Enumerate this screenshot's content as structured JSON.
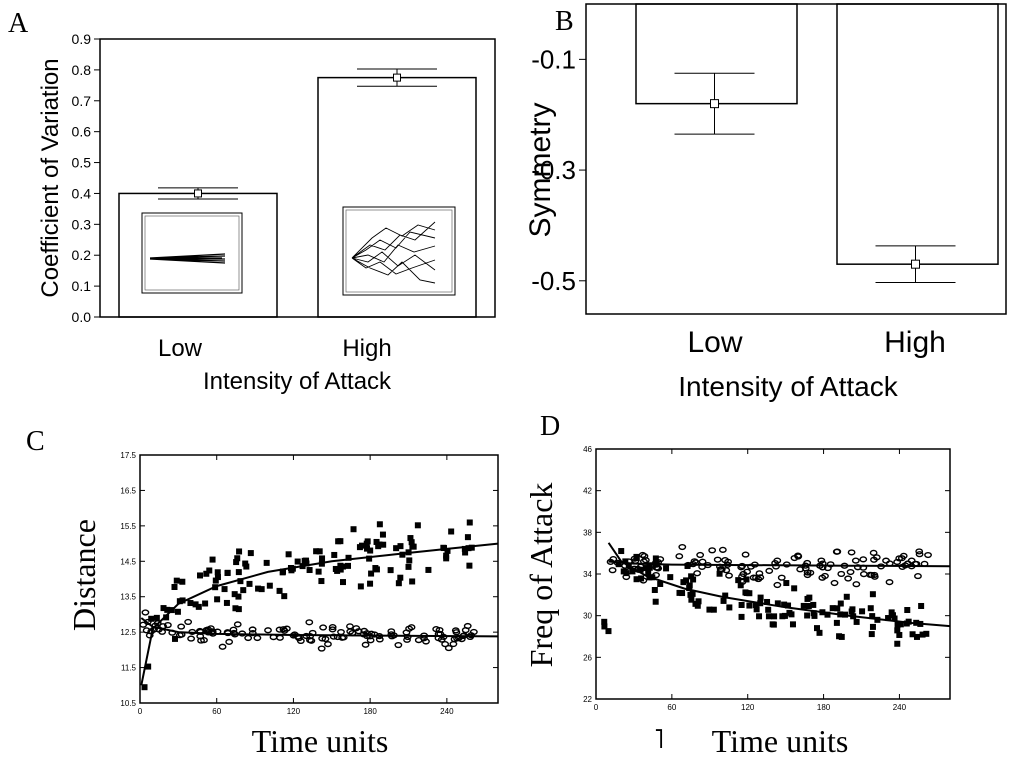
{
  "chart_data": [
    {
      "panel": "A",
      "type": "bar",
      "xlabel": "Intensity of Attack",
      "ylabel": "Coefficient of Variation",
      "categories": [
        "Low",
        "High"
      ],
      "values": [
        0.4,
        0.775
      ],
      "error": [
        0.018,
        0.028
      ],
      "ylim": [
        0,
        0.9
      ],
      "yticks": [
        "0.0",
        "0.1",
        "0.2",
        "0.3",
        "0.4",
        "0.5",
        "0.6",
        "0.7",
        "0.8",
        "0.9"
      ],
      "insets": "trajectory plots inside each bar (narrow bundle for Low, widely spread bundle for High)"
    },
    {
      "panel": "B",
      "type": "bar",
      "xlabel": "Intensity of Attack",
      "ylabel": "Symmetry",
      "categories": [
        "Low",
        "High"
      ],
      "values": [
        -0.18,
        -0.47
      ],
      "error": [
        0.055,
        0.033
      ],
      "ylim": [
        -0.56,
        0.0
      ],
      "yticks": [
        "-0.1",
        "-0.3",
        "-0.5"
      ]
    },
    {
      "panel": "C",
      "type": "scatter",
      "xlabel": "Time units",
      "ylabel": "Distance",
      "xlim": [
        0,
        280
      ],
      "ylim": [
        10.5,
        17.5
      ],
      "xticks": [
        "0",
        "60",
        "120",
        "180",
        "240"
      ],
      "yticks": [
        "10.5",
        "11.5",
        "12.5",
        "13.5",
        "14.5",
        "15.5",
        "16.5",
        "17.5"
      ],
      "series": [
        {
          "marker": "filled-square",
          "fit": {
            "x": [
              1,
              10,
              30,
              60,
              100,
              150,
              200,
              240,
              280
            ],
            "y": [
              11.0,
              12.6,
              13.3,
              13.8,
              14.2,
              14.5,
              14.7,
              14.85,
              15.0
            ]
          }
        },
        {
          "marker": "open-circle",
          "fit": {
            "x": [
              1,
              10,
              30,
              60,
              120,
              200,
              280
            ],
            "y": [
              12.9,
              12.65,
              12.5,
              12.45,
              12.42,
              12.4,
              12.38
            ]
          }
        }
      ]
    },
    {
      "panel": "D",
      "type": "scatter",
      "xlabel": "Time units",
      "ylabel": "Freq of Attack",
      "xlim": [
        0,
        280
      ],
      "ylim": [
        22,
        46
      ],
      "xticks": [
        "0",
        "60",
        "120",
        "180",
        "240"
      ],
      "yticks": [
        "22",
        "26",
        "30",
        "34",
        "38",
        "42",
        "46"
      ],
      "series": [
        {
          "marker": "open-circle",
          "fit": {
            "x": [
              10,
              30,
              60,
              120,
              200,
              280
            ],
            "y": [
              35.2,
              35.0,
              34.9,
              34.85,
              34.8,
              34.75
            ]
          }
        },
        {
          "marker": "filled-square",
          "fit": {
            "x": [
              10,
              20,
              40,
              70,
              100,
              150,
              200,
              250,
              280
            ],
            "y": [
              37.0,
              35.2,
              33.8,
              32.6,
              31.8,
              30.8,
              30.0,
              29.3,
              29.0
            ]
          }
        }
      ]
    }
  ],
  "panel_letters": [
    "A",
    "B",
    "C",
    "D"
  ],
  "extra_text": "˥"
}
